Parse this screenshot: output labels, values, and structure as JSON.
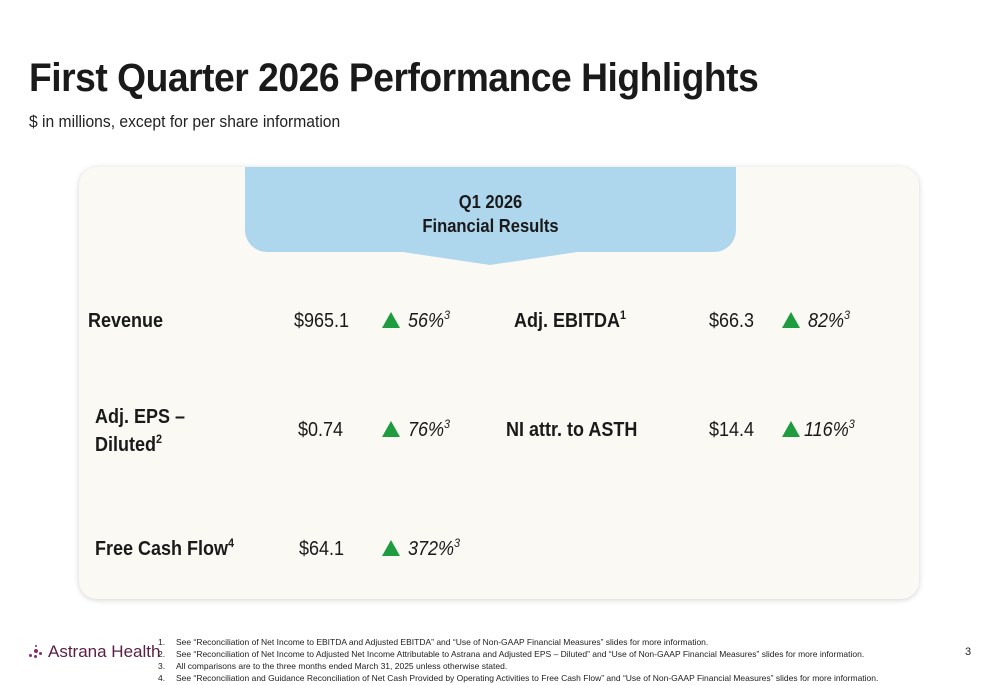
{
  "header": {
    "title": "First Quarter 2026 Performance Highlights",
    "subtitle": "$ in millions, except for per share information"
  },
  "banner": {
    "line1": "Q1 2026",
    "line2": "Financial Results",
    "color": "#aed6ec"
  },
  "metrics": {
    "revenue": {
      "label": "Revenue",
      "value": "$965.1",
      "change": "56%",
      "note": "3"
    },
    "adj_ebitda": {
      "label": "Adj. EBITDA",
      "label_note": "1",
      "value": "$66.3",
      "change": "82%",
      "note": "3"
    },
    "adj_eps": {
      "label_line1": "Adj. EPS –",
      "label_line2": "Diluted",
      "label_note": "2",
      "value": "$0.74",
      "change": "76%",
      "note": "3"
    },
    "ni_attr": {
      "label": "NI attr. to ASTH",
      "value": "$14.4",
      "change": "116%",
      "note": "3"
    },
    "fcf": {
      "label": "Free Cash Flow",
      "label_note": "4",
      "value": "$64.1",
      "change": "372%",
      "note": "3"
    }
  },
  "colors": {
    "up_arrow": "#1f9c3f",
    "card_bg": "#faf9f4",
    "brand": "#5a1e45"
  },
  "footer": {
    "logo_text": "Astrana Health",
    "page_number": "3",
    "footnotes": [
      {
        "num": "1.",
        "text": "See “Reconciliation of Net Income to EBITDA and Adjusted EBITDA”  and  “Use of Non-GAAP Financial Measures” slides for more information."
      },
      {
        "num": "2.",
        "text": "See “Reconciliation of Net Income to Adjusted Net Income Attributable to Astrana and Adjusted EPS – Diluted” and “Use of Non-GAAP Financial Measures” slides for more information."
      },
      {
        "num": "3.",
        "text": "All comparisons are to the three months ended March 31, 2025 unless otherwise stated."
      },
      {
        "num": "4.",
        "text": "See “Reconciliation and Guidance Reconciliation of Net Cash Provided by Operating Activities to Free Cash Flow” and “Use of Non-GAAP Financial Measures” slides for more information."
      }
    ]
  }
}
